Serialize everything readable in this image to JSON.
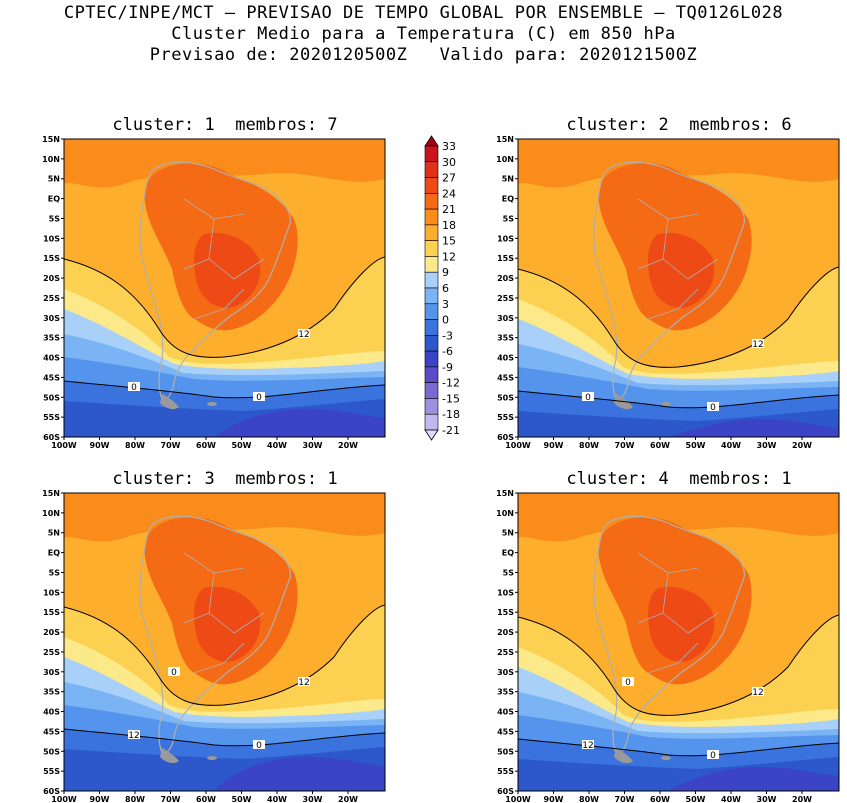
{
  "header": {
    "line1": "CPTEC/INPE/MCT – PREVISAO DE TEMPO GLOBAL POR ENSEMBLE – TQ0126L028",
    "line2": "Cluster Medio para a Temperatura (C) em 850 hPa",
    "line3": "Previsao de: 2020120500Z   Valido para: 2020121500Z"
  },
  "panels": [
    {
      "title": "cluster: 1  membros: 7",
      "contour_labels": [
        "12",
        "0",
        "0"
      ]
    },
    {
      "title": "cluster: 2  membros: 6",
      "contour_labels": [
        "12",
        "0",
        "0"
      ]
    },
    {
      "title": "cluster: 3  membros: 1",
      "contour_labels": [
        "12",
        "12",
        "0",
        "0"
      ]
    },
    {
      "title": "cluster: 4  membros: 1",
      "contour_labels": [
        "12",
        "12",
        "0",
        "0"
      ]
    }
  ],
  "axes": {
    "lat_labels": [
      "15N",
      "10N",
      "5N",
      "EQ",
      "5S",
      "10S",
      "15S",
      "20S",
      "25S",
      "30S",
      "35S",
      "40S",
      "45S",
      "50S",
      "55S",
      "60S"
    ],
    "lon_labels": [
      "100W",
      "90W",
      "80W",
      "70W",
      "60W",
      "50W",
      "40W",
      "30W",
      "20W"
    ]
  },
  "colorbar": {
    "labels": [
      "33",
      "30",
      "27",
      "24",
      "21",
      "18",
      "15",
      "12",
      "9",
      "6",
      "3",
      "0",
      "-3",
      "-6",
      "-9",
      "-12",
      "-15",
      "-18",
      "-21"
    ],
    "colors": [
      "#a50016",
      "#c8141c",
      "#e0301a",
      "#ee4a16",
      "#f56a14",
      "#fa8c1c",
      "#fcae2c",
      "#fcd050",
      "#fbe98a",
      "#a8d0f8",
      "#7ab4f4",
      "#5494ec",
      "#3a72de",
      "#2c58cc",
      "#3a44c4",
      "#5a4cc8",
      "#7c68d2",
      "#a08ee0",
      "#c4b6ee",
      "#e2d8f8"
    ]
  }
}
